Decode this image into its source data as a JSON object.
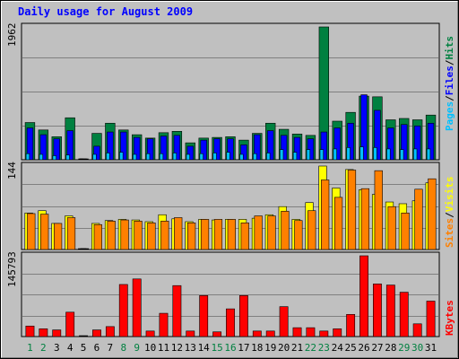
{
  "chart_data": {
    "type": "bar",
    "title": "Daily usage for August 2009",
    "xlabel": "",
    "categories": [
      "1",
      "2",
      "3",
      "4",
      "5",
      "6",
      "7",
      "8",
      "9",
      "10",
      "11",
      "12",
      "13",
      "14",
      "15",
      "16",
      "17",
      "18",
      "19",
      "20",
      "21",
      "22",
      "23",
      "24",
      "25",
      "26",
      "27",
      "28",
      "29",
      "30",
      "31"
    ],
    "weekend_days": [
      1,
      2,
      8,
      9,
      15,
      16,
      22,
      23,
      29,
      30
    ],
    "panels": [
      {
        "key": "hits_files_pages",
        "ymax": 1962,
        "ymax_label": "1962",
        "axis_label": {
          "hits": "Hits",
          "sep1": "/",
          "files": "Files",
          "sep2": "/",
          "pages": "Pages"
        },
        "series": [
          {
            "name": "Hits",
            "color": "#008040",
            "values": [
              550,
              440,
              340,
              620,
              0,
              390,
              540,
              440,
              370,
              320,
              400,
              420,
              250,
              320,
              330,
              340,
              290,
              390,
              540,
              450,
              380,
              360,
              1962,
              570,
              700,
              940,
              930,
              590,
              610,
              590,
              660
            ]
          },
          {
            "name": "Files",
            "color": "#0000ff",
            "values": [
              470,
              370,
              310,
              430,
              0,
              200,
              410,
              410,
              330,
              310,
              350,
              360,
              200,
              290,
              310,
              310,
              220,
              370,
              430,
              360,
              330,
              310,
              410,
              470,
              540,
              960,
              730,
              470,
              520,
              500,
              540
            ]
          },
          {
            "name": "Pages",
            "color": "#00c0ff",
            "values": [
              90,
              80,
              60,
              70,
              0,
              80,
              100,
              110,
              80,
              90,
              90,
              100,
              80,
              90,
              100,
              110,
              80,
              90,
              100,
              150,
              110,
              150,
              150,
              160,
              180,
              190,
              180,
              160,
              150,
              160,
              160
            ]
          }
        ]
      },
      {
        "key": "visits_sites",
        "ymax": 144,
        "ymax_label": "144",
        "axis_label": {
          "visits": "Visits",
          "sep1": "/",
          "sites": "Sites"
        },
        "series": [
          {
            "name": "Visits",
            "color": "#ffff00",
            "values": [
              63,
              67,
              45,
              58,
              0,
              45,
              50,
              52,
              51,
              48,
              60,
              53,
              48,
              52,
              51,
              52,
              52,
              54,
              60,
              74,
              52,
              81,
              144,
              106,
              138,
              103,
              95,
              82,
              79,
              84,
              115
            ]
          },
          {
            "name": "Sites",
            "color": "#ff8000",
            "values": [
              62,
              61,
              45,
              55,
              0,
              43,
              49,
              51,
              49,
              46,
              49,
              55,
              46,
              52,
              52,
              52,
              46,
              58,
              58,
              66,
              50,
              67,
              120,
              90,
              137,
              105,
              136,
              74,
              63,
              104,
              122
            ]
          }
        ]
      },
      {
        "key": "kbytes",
        "ymax": 145793,
        "ymax_label": "145793",
        "axis_label": {
          "kbytes": "KBytes"
        },
        "series": [
          {
            "name": "KBytes",
            "color": "#ff0000",
            "values": [
              19000,
              14000,
              12000,
              44000,
              0,
              12000,
              18000,
              94000,
              104000,
              10000,
              42000,
              92000,
              10000,
              74000,
              8500,
              50000,
              74000,
              10000,
              10000,
              54000,
              16000,
              16000,
              10000,
              14000,
              40000,
              145793,
              95000,
              93000,
              80000,
              23000,
              64000
            ]
          }
        ]
      }
    ],
    "colors": {
      "background": "#c0c0c0",
      "title": "#0000ff",
      "weekend_label": "#008040",
      "weekday_label": "#000000",
      "grid": "#808080"
    }
  }
}
